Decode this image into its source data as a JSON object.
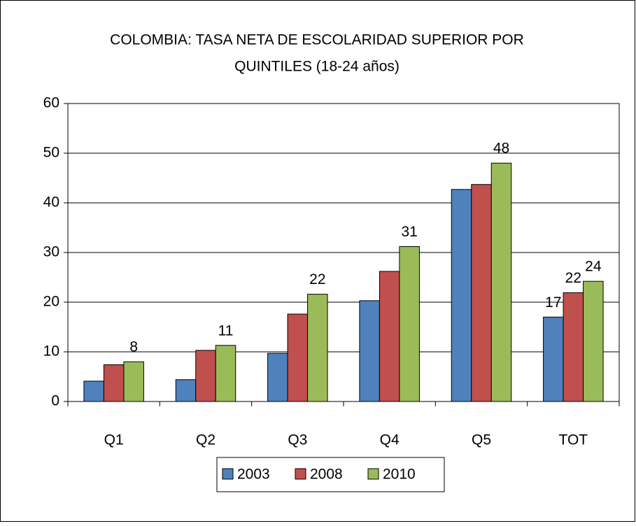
{
  "chart_data": {
    "type": "bar",
    "title": [
      "COLOMBIA: TASA NETA DE ESCOLARIDAD SUPERIOR POR",
      "QUINTILES   (18-24 años)"
    ],
    "categories": [
      "Q1",
      "Q2",
      "Q3",
      "Q4",
      "Q5",
      "TOT"
    ],
    "series": [
      {
        "name": "2003",
        "color": "#4f81bd",
        "values": [
          4.1,
          4.4,
          9.7,
          20.3,
          42.7,
          17.0
        ],
        "value_labels": [
          null,
          null,
          null,
          null,
          null,
          "17"
        ]
      },
      {
        "name": "2008",
        "color": "#c0504d",
        "values": [
          7.4,
          10.3,
          17.6,
          26.2,
          43.7,
          21.9
        ],
        "value_labels": [
          null,
          null,
          null,
          null,
          null,
          "22"
        ]
      },
      {
        "name": "2010",
        "color": "#9bbb59",
        "values": [
          8.0,
          11.3,
          21.6,
          31.2,
          48.0,
          24.2
        ],
        "value_labels": [
          "8",
          "11",
          "22",
          "31",
          "48",
          "24"
        ]
      }
    ],
    "ylim": [
      0,
      60
    ],
    "yticks": [
      0,
      10,
      20,
      30,
      40,
      50,
      60
    ],
    "grid": true,
    "legend": "bottom"
  }
}
